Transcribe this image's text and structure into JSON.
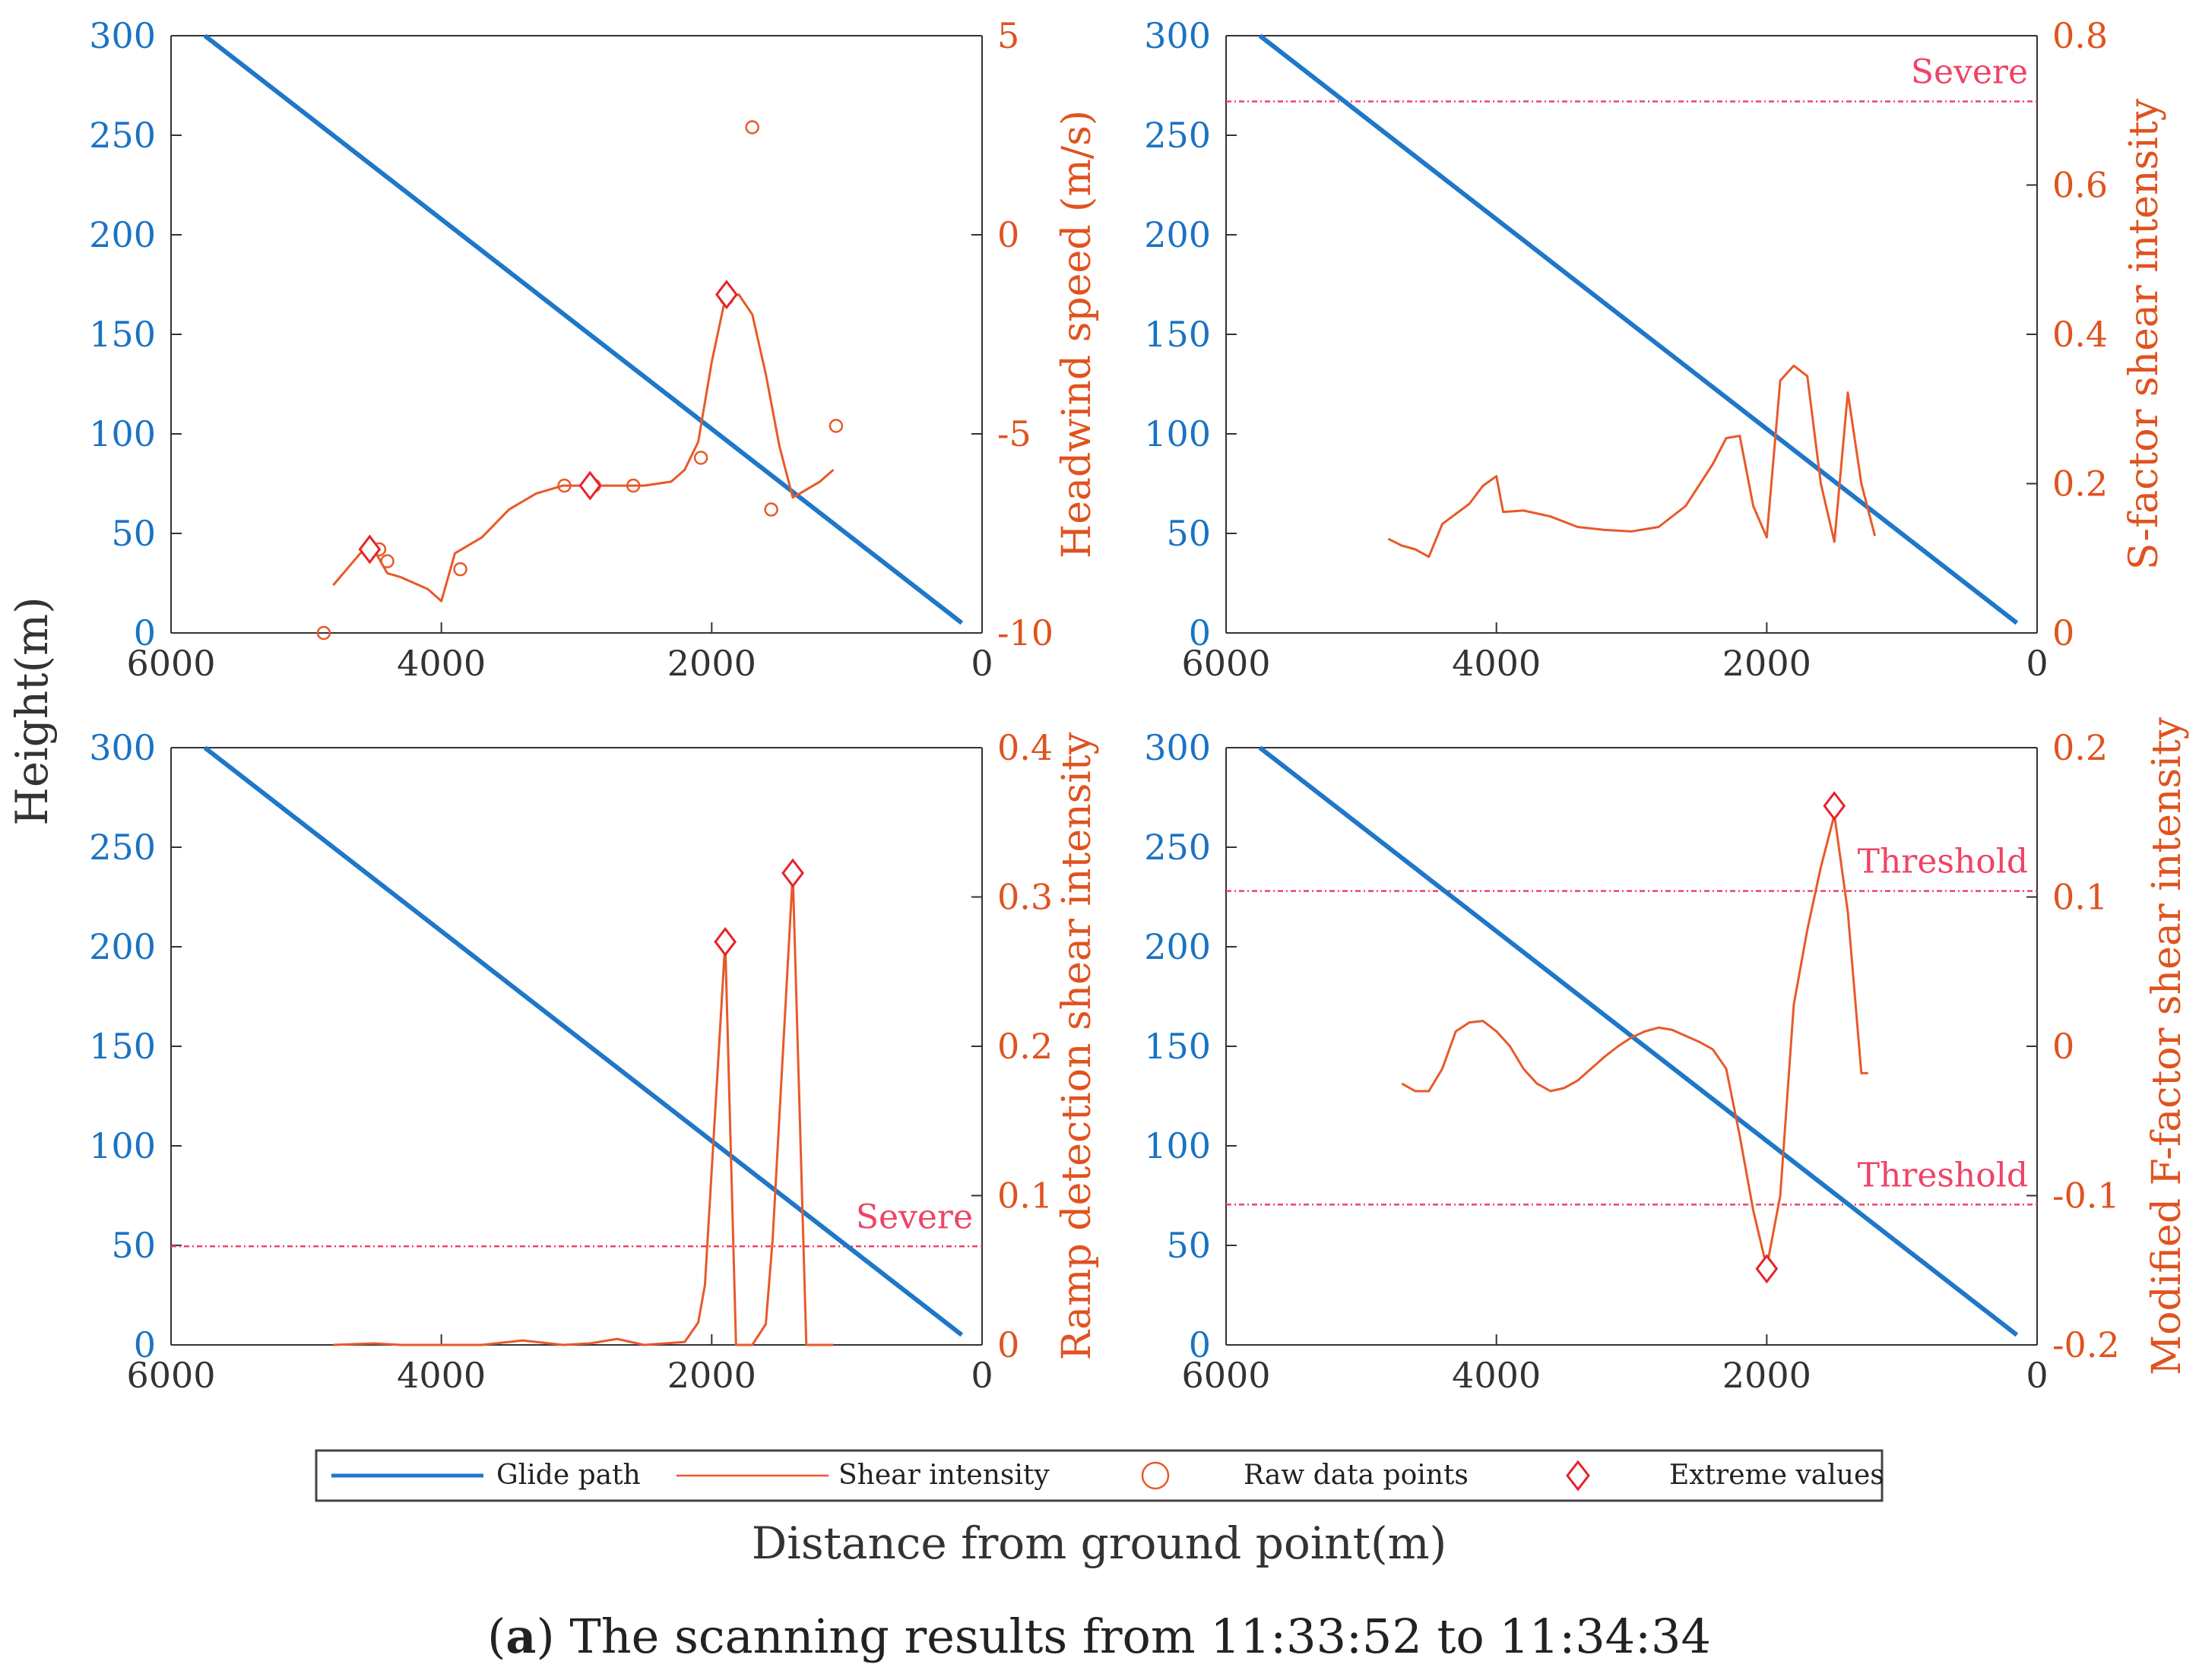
{
  "figure": {
    "caption_letter": "a",
    "caption_open": "(",
    "caption_close": ")",
    "caption_text": " The scanning results from 11:33:52 to 11:34:34",
    "shared_ylabel": "Height(m)",
    "shared_xlabel": "Distance from ground point(m)"
  },
  "legend": {
    "glide": "Glide path",
    "shear": "Shear intensity",
    "raw": "Raw data points",
    "extreme": "Extreme values"
  },
  "colors": {
    "glide": "#1f77c9",
    "shear": "#e8592a",
    "threshold": "#ee4466",
    "left_axis": "#1a73c4",
    "right_axis": "#e0531f"
  },
  "chart_data": [
    {
      "type": "line",
      "title": "",
      "xlabel": "",
      "xlim": [
        6000,
        0
      ],
      "x_ticks": [
        6000,
        4000,
        2000,
        0
      ],
      "x_tick_labels": [
        "6000",
        "4000",
        "2000",
        "0"
      ],
      "ylabel": "Height(m)",
      "ylim": [
        0,
        300
      ],
      "y_ticks": [
        0,
        50,
        100,
        150,
        200,
        250,
        300
      ],
      "y_tick_labels": [
        "0",
        "50",
        "100",
        "150",
        "200",
        "250",
        "300"
      ],
      "y2label": "Headwind speed (m/s)",
      "y2lim": [
        -10,
        5
      ],
      "y2_ticks": [
        -10,
        -5,
        0,
        5
      ],
      "y2_tick_labels": [
        "-10",
        "-5",
        "0",
        "5"
      ],
      "glide_path": {
        "x": [
          5750,
          150
        ],
        "y": [
          300,
          5
        ]
      },
      "shear_intensity": {
        "x": [
          4800,
          4600,
          4500,
          4400,
          4300,
          4100,
          4000,
          3900,
          3700,
          3500,
          3300,
          3100,
          2900,
          2700,
          2500,
          2300,
          2200,
          2100,
          2000,
          1900,
          1800,
          1700,
          1600,
          1500,
          1400,
          1300,
          1200,
          1100
        ],
        "y": [
          -8.8,
          -8.0,
          -7.9,
          -8.5,
          -8.6,
          -8.9,
          -9.2,
          -8.0,
          -7.6,
          -6.9,
          -6.5,
          -6.3,
          -6.3,
          -6.3,
          -6.3,
          -6.2,
          -5.9,
          -5.2,
          -3.2,
          -1.6,
          -1.5,
          -2.0,
          -3.5,
          -5.3,
          -6.6,
          -6.4,
          -6.2,
          -5.9
        ]
      },
      "raw_points": {
        "x": [
          4870,
          4460,
          4400,
          3860,
          3090,
          2870,
          2580,
          2080,
          1890,
          1700,
          1560,
          1080
        ],
        "y": [
          -10.0,
          -7.9,
          -8.2,
          -8.4,
          -6.3,
          -6.3,
          -6.3,
          -5.6,
          -1.6,
          2.7,
          -6.9,
          -4.8
        ]
      },
      "extreme_values": {
        "x": [
          4530,
          2900,
          1890
        ],
        "y": [
          -7.9,
          -6.3,
          -1.5
        ]
      },
      "thresholds": []
    },
    {
      "type": "line",
      "title": "",
      "xlabel": "",
      "xlim": [
        6000,
        0
      ],
      "x_ticks": [
        6000,
        4000,
        2000,
        0
      ],
      "x_tick_labels": [
        "6000",
        "4000",
        "2000",
        "0"
      ],
      "ylabel": "",
      "ylim": [
        0,
        300
      ],
      "y_ticks": [
        0,
        50,
        100,
        150,
        200,
        250,
        300
      ],
      "y_tick_labels": [
        "0",
        "50",
        "100",
        "150",
        "200",
        "250",
        "300"
      ],
      "y2label": "S-factor shear intensity",
      "y2lim": [
        0,
        0.8
      ],
      "y2_ticks": [
        0,
        0.2,
        0.4,
        0.6,
        0.8
      ],
      "y2_tick_labels": [
        "0",
        "0.2",
        "0.4",
        "0.6",
        "0.8"
      ],
      "glide_path": {
        "x": [
          5750,
          150
        ],
        "y": [
          300,
          5
        ]
      },
      "shear_intensity": {
        "x": [
          4800,
          4700,
          4600,
          4500,
          4400,
          4200,
          4100,
          4000,
          3950,
          3800,
          3600,
          3400,
          3200,
          3000,
          2800,
          2600,
          2400,
          2300,
          2200,
          2100,
          2000,
          1900,
          1800,
          1700,
          1600,
          1500,
          1400,
          1300,
          1200
        ],
        "y": [
          0.126,
          0.117,
          0.112,
          0.102,
          0.146,
          0.173,
          0.197,
          0.21,
          0.162,
          0.164,
          0.156,
          0.142,
          0.138,
          0.136,
          0.142,
          0.17,
          0.226,
          0.261,
          0.264,
          0.17,
          0.128,
          0.338,
          0.358,
          0.344,
          0.2,
          0.122,
          0.322,
          0.2,
          0.13
        ]
      },
      "raw_points": {
        "x": [],
        "y": []
      },
      "extreme_values": {
        "x": [],
        "y": []
      },
      "thresholds": [
        {
          "label": "Severe",
          "value": 0.712
        }
      ]
    },
    {
      "type": "line",
      "title": "",
      "xlabel": "",
      "xlim": [
        6000,
        0
      ],
      "x_ticks": [
        6000,
        4000,
        2000,
        0
      ],
      "x_tick_labels": [
        "6000",
        "4000",
        "2000",
        "0"
      ],
      "ylabel": "",
      "ylim": [
        0,
        300
      ],
      "y_ticks": [
        0,
        50,
        100,
        150,
        200,
        250,
        300
      ],
      "y_tick_labels": [
        "0",
        "50",
        "100",
        "150",
        "200",
        "250",
        "300"
      ],
      "y2label": "Ramp detection shear intensity",
      "y2lim": [
        0,
        0.4
      ],
      "y2_ticks": [
        0,
        0.1,
        0.2,
        0.3,
        0.4
      ],
      "y2_tick_labels": [
        "0",
        "0.1",
        "0.2",
        "0.3",
        "0.4"
      ],
      "glide_path": {
        "x": [
          5750,
          150
        ],
        "y": [
          300,
          5
        ]
      },
      "shear_intensity": {
        "x": [
          4800,
          4500,
          4300,
          4000,
          3700,
          3400,
          3100,
          2900,
          2700,
          2500,
          2200,
          2100,
          2050,
          1900,
          1820,
          1700,
          1600,
          1550,
          1400,
          1300,
          1250,
          1100
        ],
        "y": [
          0.0,
          0.001,
          0.0,
          0.0,
          0.0,
          0.003,
          0.0,
          0.001,
          0.004,
          0.0,
          0.002,
          0.015,
          0.04,
          0.27,
          0.0,
          0.0,
          0.014,
          0.07,
          0.316,
          0.0,
          0.0,
          0.0
        ]
      },
      "raw_points": {
        "x": [],
        "y": []
      },
      "extreme_values": {
        "x": [
          1900,
          1400
        ],
        "y": [
          0.27,
          0.316
        ]
      },
      "thresholds": [
        {
          "label": "Severe",
          "value": 0.066
        }
      ]
    },
    {
      "type": "line",
      "title": "",
      "xlabel": "",
      "xlim": [
        6000,
        0
      ],
      "x_ticks": [
        6000,
        4000,
        2000,
        0
      ],
      "x_tick_labels": [
        "6000",
        "4000",
        "2000",
        "0"
      ],
      "ylabel": "",
      "ylim": [
        0,
        300
      ],
      "y_ticks": [
        0,
        50,
        100,
        150,
        200,
        250,
        300
      ],
      "y_tick_labels": [
        "0",
        "50",
        "100",
        "150",
        "200",
        "250",
        "300"
      ],
      "y2label": "Modified F-factor shear intensity",
      "y2lim": [
        -0.2,
        0.2
      ],
      "y2_ticks": [
        -0.2,
        -0.1,
        0,
        0.1,
        0.2
      ],
      "y2_tick_labels": [
        "-0.2",
        "-0.1",
        "0",
        "0.1",
        "0.2"
      ],
      "glide_path": {
        "x": [
          5750,
          150
        ],
        "y": [
          300,
          5
        ]
      },
      "shear_intensity": {
        "x": [
          4700,
          4600,
          4500,
          4400,
          4300,
          4200,
          4100,
          4000,
          3900,
          3800,
          3700,
          3600,
          3500,
          3400,
          3300,
          3200,
          3100,
          3000,
          2900,
          2800,
          2700,
          2600,
          2500,
          2400,
          2300,
          2200,
          2100,
          2000,
          1900,
          1800,
          1700,
          1600,
          1500,
          1400,
          1300,
          1250
        ],
        "y": [
          -0.025,
          -0.03,
          -0.03,
          -0.015,
          0.01,
          0.016,
          0.017,
          0.01,
          0.0,
          -0.015,
          -0.025,
          -0.03,
          -0.028,
          -0.023,
          -0.015,
          -0.007,
          0.0,
          0.006,
          0.01,
          0.0125,
          0.011,
          0.007,
          0.003,
          -0.002,
          -0.015,
          -0.06,
          -0.11,
          -0.148,
          -0.1,
          0.028,
          0.078,
          0.12,
          0.155,
          0.09,
          -0.018,
          -0.018
        ]
      },
      "raw_points": {
        "x": [],
        "y": []
      },
      "extreme_values": {
        "x": [
          2000,
          1500
        ],
        "y": [
          -0.149,
          0.161
        ]
      },
      "thresholds": [
        {
          "label": "Threshold",
          "value": 0.104
        },
        {
          "label": "Threshold",
          "value": -0.106
        }
      ]
    }
  ]
}
